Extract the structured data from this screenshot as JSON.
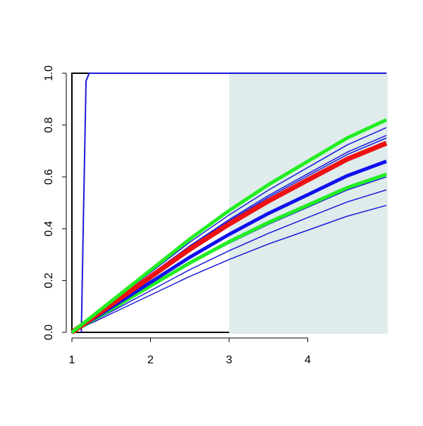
{
  "chart_data": {
    "type": "line",
    "x": [
      1,
      1.5,
      2,
      2.5,
      3,
      3.5,
      4,
      4.5,
      5
    ],
    "xlim": [
      1,
      5
    ],
    "ylim": [
      0,
      1
    ],
    "xticks": [
      1,
      2,
      3,
      4
    ],
    "yticks": [
      {
        "value": 0,
        "label": "0.0"
      },
      0.2,
      0.4,
      0.6,
      0.8,
      {
        "value": 1,
        "label": "1.0"
      }
    ],
    "shaded_region": {
      "xmin": 3,
      "xmax": 5,
      "color": "#dfeceb"
    },
    "series": [
      {
        "color": "#1a1adb",
        "width": 1.5,
        "values": [
          0,
          0.115,
          0.231,
          0.348,
          0.453,
          0.549,
          0.636,
          0.723,
          0.79
        ]
      },
      {
        "color": "#1a1adb",
        "width": 1.5,
        "values": [
          0,
          0.111,
          0.223,
          0.334,
          0.435,
          0.528,
          0.612,
          0.695,
          0.76
        ]
      },
      {
        "color": "#1a1adb",
        "width": 1.5,
        "values": [
          0,
          0.11,
          0.22,
          0.33,
          0.43,
          0.521,
          0.604,
          0.686,
          0.75
        ]
      },
      {
        "color": "#1a1adb",
        "width": 1.5,
        "values": [
          0,
          0.088,
          0.176,
          0.264,
          0.344,
          0.417,
          0.483,
          0.549,
          0.6
        ]
      },
      {
        "color": "#1a1adb",
        "width": 1.5,
        "values": [
          0,
          0.08,
          0.161,
          0.242,
          0.315,
          0.382,
          0.443,
          0.503,
          0.55
        ]
      },
      {
        "color": "#1a1adb",
        "width": 1.5,
        "values": [
          0,
          0.072,
          0.144,
          0.216,
          0.281,
          0.341,
          0.394,
          0.448,
          0.49
        ]
      },
      {
        "color": "#1a1adb",
        "width": 2,
        "x": [
          1.12,
          1.15,
          1.18,
          1.22,
          5
        ],
        "values": [
          0,
          0.5,
          0.97,
          1,
          1
        ]
      },
      {
        "color": "#22ee22",
        "width": 5,
        "values": [
          0,
          0.089,
          0.179,
          0.268,
          0.35,
          0.424,
          0.491,
          0.558,
          0.61
        ]
      },
      {
        "color": "#1010ee",
        "width": 5,
        "values": [
          0,
          0.096,
          0.193,
          0.29,
          0.378,
          0.459,
          0.531,
          0.604,
          0.66
        ]
      },
      {
        "color": "#ee1111",
        "width": 7,
        "values": [
          0,
          0.107,
          0.214,
          0.321,
          0.418,
          0.507,
          0.588,
          0.668,
          0.73
        ]
      },
      {
        "color": "#22ee22",
        "width": 5,
        "values": [
          0,
          0.12,
          0.24,
          0.36,
          0.47,
          0.57,
          0.66,
          0.75,
          0.82
        ]
      }
    ]
  }
}
